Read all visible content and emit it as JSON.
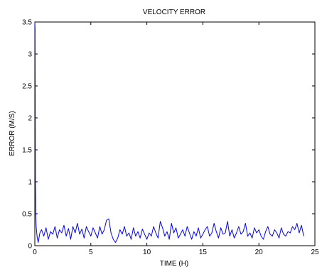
{
  "chart_data": {
    "type": "line",
    "title": "VELOCITY ERROR",
    "xlabel": "TIME (H)",
    "ylabel": "ERROR (M/S)",
    "xlim": [
      0,
      25
    ],
    "ylim": [
      0,
      3.5
    ],
    "xticks": [
      0,
      5,
      10,
      15,
      20,
      25
    ],
    "xtick_labels": [
      "0",
      "5",
      "10",
      "15",
      "20",
      "25"
    ],
    "yticks": [
      0,
      0.5,
      1,
      1.5,
      2,
      2.5,
      3,
      3.5
    ],
    "ytick_labels": [
      "0",
      "0.5",
      "1",
      "1.5",
      "2",
      "2.5",
      "3",
      "3.5"
    ],
    "grid": false,
    "line_color": "#0000ff",
    "series": [
      {
        "x": [
          0,
          0.02,
          0.05,
          0.08,
          0.12,
          0.17,
          0.22,
          0.3,
          0.45,
          0.6,
          0.8,
          1.0,
          1.2,
          1.4,
          1.6,
          1.8,
          2.0,
          2.2,
          2.4,
          2.6,
          2.8,
          3.0,
          3.2,
          3.4,
          3.6,
          3.8,
          4.0,
          4.2,
          4.4,
          4.6,
          4.8,
          5.0,
          5.2,
          5.4,
          5.6,
          5.8,
          6.0,
          6.2,
          6.4,
          6.6,
          6.8,
          7.0,
          7.2,
          7.4,
          7.6,
          7.8,
          8.0,
          8.2,
          8.4,
          8.6,
          8.8,
          9.0,
          9.2,
          9.4,
          9.6,
          9.8,
          10.0,
          10.2,
          10.4,
          10.6,
          10.8,
          11.0,
          11.2,
          11.4,
          11.6,
          11.8,
          12.0,
          12.2,
          12.4,
          12.6,
          12.8,
          13.0,
          13.2,
          13.4,
          13.6,
          13.8,
          14.0,
          14.2,
          14.4,
          14.6,
          14.8,
          15.0,
          15.2,
          15.4,
          15.6,
          15.8,
          16.0,
          16.2,
          16.4,
          16.6,
          16.8,
          17.0,
          17.2,
          17.4,
          17.6,
          17.8,
          18.0,
          18.2,
          18.4,
          18.6,
          18.8,
          19.0,
          19.2,
          19.4,
          19.6,
          19.8,
          20.0,
          20.2,
          20.4,
          20.6,
          20.8,
          21.0,
          21.2,
          21.4,
          21.6,
          21.8,
          22.0,
          22.2,
          22.4,
          22.6,
          22.8,
          23.0,
          23.2,
          23.4,
          23.6,
          23.8,
          24.0
        ],
        "y": [
          3.5,
          3.4,
          1.0,
          0.5,
          0.3,
          0.2,
          0.12,
          0.05,
          0.2,
          0.25,
          0.15,
          0.28,
          0.1,
          0.22,
          0.18,
          0.3,
          0.12,
          0.25,
          0.2,
          0.32,
          0.15,
          0.27,
          0.1,
          0.3,
          0.2,
          0.35,
          0.18,
          0.26,
          0.12,
          0.3,
          0.22,
          0.15,
          0.28,
          0.2,
          0.12,
          0.3,
          0.18,
          0.25,
          0.4,
          0.42,
          0.2,
          0.1,
          0.05,
          0.12,
          0.25,
          0.18,
          0.3,
          0.15,
          0.2,
          0.1,
          0.28,
          0.15,
          0.22,
          0.12,
          0.26,
          0.18,
          0.1,
          0.2,
          0.15,
          0.3,
          0.2,
          0.12,
          0.38,
          0.28,
          0.15,
          0.22,
          0.1,
          0.35,
          0.2,
          0.28,
          0.12,
          0.18,
          0.25,
          0.15,
          0.3,
          0.2,
          0.1,
          0.22,
          0.15,
          0.28,
          0.12,
          0.18,
          0.25,
          0.3,
          0.15,
          0.2,
          0.35,
          0.22,
          0.12,
          0.28,
          0.18,
          0.2,
          0.38,
          0.15,
          0.25,
          0.12,
          0.2,
          0.3,
          0.18,
          0.22,
          0.35,
          0.15,
          0.2,
          0.12,
          0.28,
          0.2,
          0.25,
          0.15,
          0.1,
          0.22,
          0.3,
          0.18,
          0.15,
          0.25,
          0.2,
          0.12,
          0.28,
          0.18,
          0.15,
          0.22,
          0.2,
          0.3,
          0.25,
          0.35,
          0.2,
          0.32,
          0.15
        ]
      }
    ]
  }
}
